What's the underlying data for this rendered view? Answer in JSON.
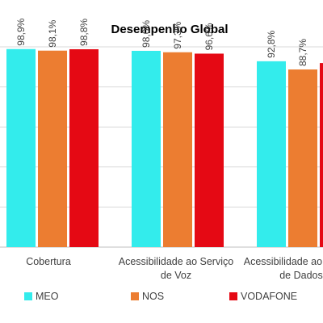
{
  "chart_data": {
    "type": "bar",
    "title": "Desempenho Global",
    "categories": [
      [
        "Cobertura"
      ],
      [
        "Acessibilidade ao Serviço",
        "de Voz"
      ],
      [
        "Acessibilidade ao Serviço",
        "de Dados"
      ]
    ],
    "series": [
      {
        "name": "MEO",
        "color": "#33ecec",
        "values": [
          98.9,
          98.0,
          92.8
        ],
        "labels": [
          "98,9%",
          "98,0%",
          "92,8%"
        ]
      },
      {
        "name": "NOS",
        "color": "#ec7d31",
        "values": [
          98.1,
          97.3,
          88.7
        ],
        "labels": [
          "98,1%",
          "97,3%",
          "88,7%"
        ]
      },
      {
        "name": "VODAFONE",
        "color": "#e50914",
        "values": [
          98.8,
          96.6,
          91.9
        ],
        "labels": [
          "98,8%",
          "96,6%",
          ""
        ]
      }
    ],
    "ylim": [
      0,
      100
    ],
    "grid": true,
    "legend": "bottom"
  }
}
